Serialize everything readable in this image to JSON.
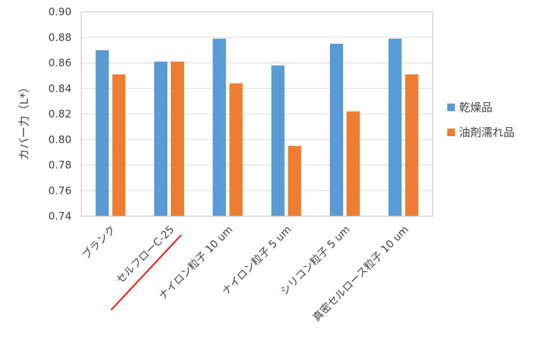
{
  "chart_data": {
    "type": "bar",
    "title": "",
    "xlabel": "",
    "ylabel": "カバー力（L*）",
    "ylim": [
      0.74,
      0.9
    ],
    "ytick_step": 0.02,
    "yticks": [
      "0.74",
      "0.76",
      "0.78",
      "0.80",
      "0.82",
      "0.84",
      "0.86",
      "0.88",
      "0.90"
    ],
    "grid": true,
    "legend_position": "right",
    "categories": [
      "ブランク",
      "セルフローC-25",
      "ナイロン粒子 10 um",
      "ナイロン粒子 5 um",
      "シリコン粒子 5 um",
      "真密セルロース粒子 10 um"
    ],
    "series": [
      {
        "name": "乾燥品",
        "color": "#5B9BD5",
        "values": [
          0.87,
          0.861,
          0.879,
          0.858,
          0.875,
          0.879
        ]
      },
      {
        "name": "油剤濡れ品",
        "color": "#ED7D31",
        "values": [
          0.851,
          0.861,
          0.844,
          0.795,
          0.822,
          0.851
        ]
      }
    ],
    "annotations": [
      {
        "type": "underline",
        "target_category": "セルフローC-25",
        "color": "#FF0000"
      }
    ]
  }
}
